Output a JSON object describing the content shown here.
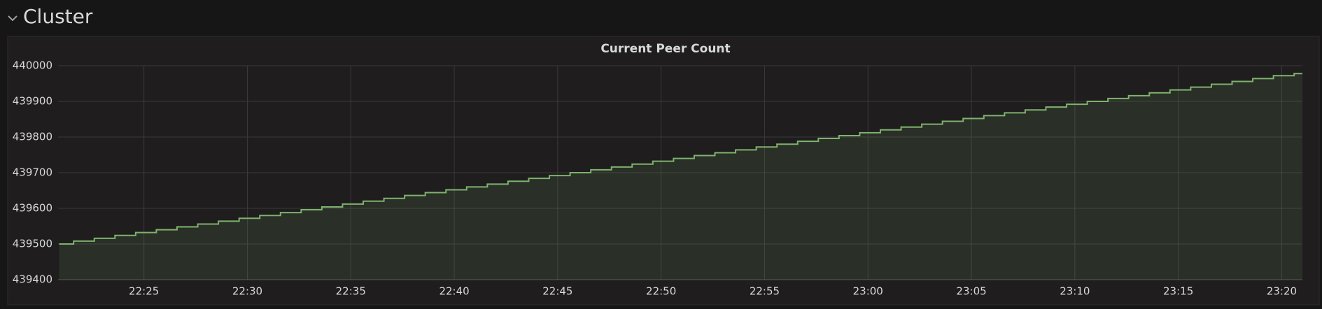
{
  "header": {
    "title": "Cluster"
  },
  "chart_data": {
    "type": "line",
    "title": "Current Peer Count",
    "step": "after",
    "grid": true,
    "fill": true,
    "x": [
      1340.9,
      1341.6,
      1342.6,
      1343.6,
      1344.6,
      1345.6,
      1346.6,
      1347.6,
      1348.6,
      1349.6,
      1350.6,
      1351.6,
      1352.6,
      1353.6,
      1354.6,
      1355.6,
      1356.6,
      1357.6,
      1358.6,
      1359.6,
      1360.6,
      1361.6,
      1362.6,
      1363.6,
      1364.6,
      1365.6,
      1366.6,
      1367.6,
      1368.6,
      1369.6,
      1370.6,
      1371.6,
      1372.6,
      1373.6,
      1374.6,
      1375.6,
      1376.6,
      1377.6,
      1378.6,
      1379.6,
      1380.6,
      1381.6,
      1382.6,
      1383.6,
      1384.6,
      1385.6,
      1386.6,
      1387.6,
      1388.6,
      1389.6,
      1390.6,
      1391.6,
      1392.6,
      1393.6,
      1394.6,
      1395.6,
      1396.6,
      1397.6,
      1398.6,
      1399.6,
      1400.6
    ],
    "series": [
      {
        "color": "#7eb26d",
        "values": [
          439500,
          439508,
          439516,
          439524,
          439532,
          439540,
          439548,
          439556,
          439564,
          439572,
          439580,
          439588,
          439596,
          439604,
          439612,
          439620,
          439628,
          439636,
          439644,
          439652,
          439660,
          439668,
          439676,
          439684,
          439692,
          439700,
          439708,
          439716,
          439724,
          439732,
          439740,
          439748,
          439756,
          439764,
          439772,
          439780,
          439788,
          439796,
          439804,
          439812,
          439820,
          439828,
          439836,
          439844,
          439852,
          439860,
          439868,
          439876,
          439884,
          439892,
          439900,
          439908,
          439916,
          439924,
          439932,
          439940,
          439948,
          439956,
          439964,
          439972,
          439978
        ]
      }
    ],
    "xlim": [
      1340.85,
      1401.0
    ],
    "xticks": [
      {
        "value": 1345,
        "label": "22:25"
      },
      {
        "value": 1350,
        "label": "22:30"
      },
      {
        "value": 1355,
        "label": "22:35"
      },
      {
        "value": 1360,
        "label": "22:40"
      },
      {
        "value": 1365,
        "label": "22:45"
      },
      {
        "value": 1370,
        "label": "22:50"
      },
      {
        "value": 1375,
        "label": "22:55"
      },
      {
        "value": 1380,
        "label": "23:00"
      },
      {
        "value": 1385,
        "label": "23:05"
      },
      {
        "value": 1390,
        "label": "23:10"
      },
      {
        "value": 1395,
        "label": "23:15"
      },
      {
        "value": 1400,
        "label": "23:20"
      }
    ],
    "ylim": [
      439400,
      440000
    ],
    "yticks": [
      439400,
      439500,
      439600,
      439700,
      439800,
      439900,
      440000
    ]
  }
}
